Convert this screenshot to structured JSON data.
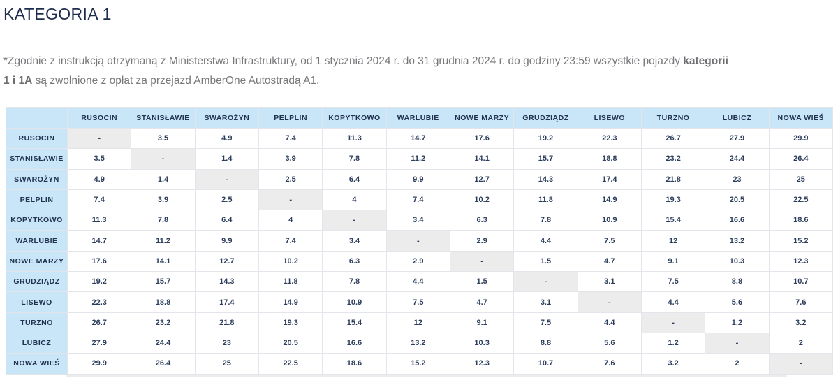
{
  "page": {
    "title": "KATEGORIA 1",
    "note": {
      "line1": "*Zgodnie z instrukcją otrzymaną z Ministerstwa Infrastruktury, od 1 stycznia 2024 r.  do 31 grudnia 2024 r. do godziny 23:59 wszystkie pojazdy ",
      "line1_bold": "kategorii",
      "line2_bold": "1 i 1A",
      "line2_rest": " są zwolnione z opłat za przejazd AmberOne Autostradą A1."
    }
  },
  "colors": {
    "accent_header_bg": "#c9e5f8",
    "diagonal_bg": "#ececec",
    "text_navy": "#21324f",
    "note_gray": "#77787b",
    "border": "#e2e5ea"
  },
  "table": {
    "columns": [
      "RUSOCIN",
      "STANISŁAWIE",
      "SWAROŻYN",
      "PELPLIN",
      "KOPYTKOWO",
      "WARLUBIE",
      "NOWE MARZY",
      "GRUDZIĄDZ",
      "LISEWO",
      "TURZNO",
      "LUBICZ",
      "NOWA WIEŚ"
    ],
    "rows": [
      {
        "label": "RUSOCIN",
        "values": [
          "-",
          "3.5",
          "4.9",
          "7.4",
          "11.3",
          "14.7",
          "17.6",
          "19.2",
          "22.3",
          "26.7",
          "27.9",
          "29.9"
        ]
      },
      {
        "label": "STANISŁAWIE",
        "values": [
          "3.5",
          "-",
          "1.4",
          "3.9",
          "7.8",
          "11.2",
          "14.1",
          "15.7",
          "18.8",
          "23.2",
          "24.4",
          "26.4"
        ]
      },
      {
        "label": "SWAROŻYN",
        "values": [
          "4.9",
          "1.4",
          "-",
          "2.5",
          "6.4",
          "9.9",
          "12.7",
          "14.3",
          "17.4",
          "21.8",
          "23",
          "25"
        ]
      },
      {
        "label": "PELPLIN",
        "values": [
          "7.4",
          "3.9",
          "2.5",
          "-",
          "4",
          "7.4",
          "10.2",
          "11.8",
          "14.9",
          "19.3",
          "20.5",
          "22.5"
        ]
      },
      {
        "label": "KOPYTKOWO",
        "values": [
          "11.3",
          "7.8",
          "6.4",
          "4",
          "-",
          "3.4",
          "6.3",
          "7.8",
          "10.9",
          "15.4",
          "16.6",
          "18.6"
        ]
      },
      {
        "label": "WARLUBIE",
        "values": [
          "14.7",
          "11.2",
          "9.9",
          "7.4",
          "3.4",
          "-",
          "2.9",
          "4.4",
          "7.5",
          "12",
          "13.2",
          "15.2"
        ]
      },
      {
        "label": "NOWE MARZY",
        "values": [
          "17.6",
          "14.1",
          "12.7",
          "10.2",
          "6.3",
          "2.9",
          "-",
          "1.5",
          "4.7",
          "9.1",
          "10.3",
          "12.3"
        ]
      },
      {
        "label": "GRUDZIĄDZ",
        "values": [
          "19.2",
          "15.7",
          "14.3",
          "11.8",
          "7.8",
          "4.4",
          "1.5",
          "-",
          "3.1",
          "7.5",
          "8.8",
          "10.7"
        ]
      },
      {
        "label": "LISEWO",
        "values": [
          "22.3",
          "18.8",
          "17.4",
          "14.9",
          "10.9",
          "7.5",
          "4.7",
          "3.1",
          "-",
          "4.4",
          "5.6",
          "7.6"
        ]
      },
      {
        "label": "TURZNO",
        "values": [
          "26.7",
          "23.2",
          "21.8",
          "19.3",
          "15.4",
          "12",
          "9.1",
          "7.5",
          "4.4",
          "-",
          "1.2",
          "3.2"
        ]
      },
      {
        "label": "LUBICZ",
        "values": [
          "27.9",
          "24.4",
          "23",
          "20.5",
          "16.6",
          "13.2",
          "10.3",
          "8.8",
          "5.6",
          "1.2",
          "-",
          "2"
        ]
      },
      {
        "label": "NOWA WIEŚ",
        "values": [
          "29.9",
          "26.4",
          "25",
          "22.5",
          "18.6",
          "15.2",
          "12.3",
          "10.7",
          "7.6",
          "3.2",
          "2",
          "-"
        ]
      }
    ]
  }
}
